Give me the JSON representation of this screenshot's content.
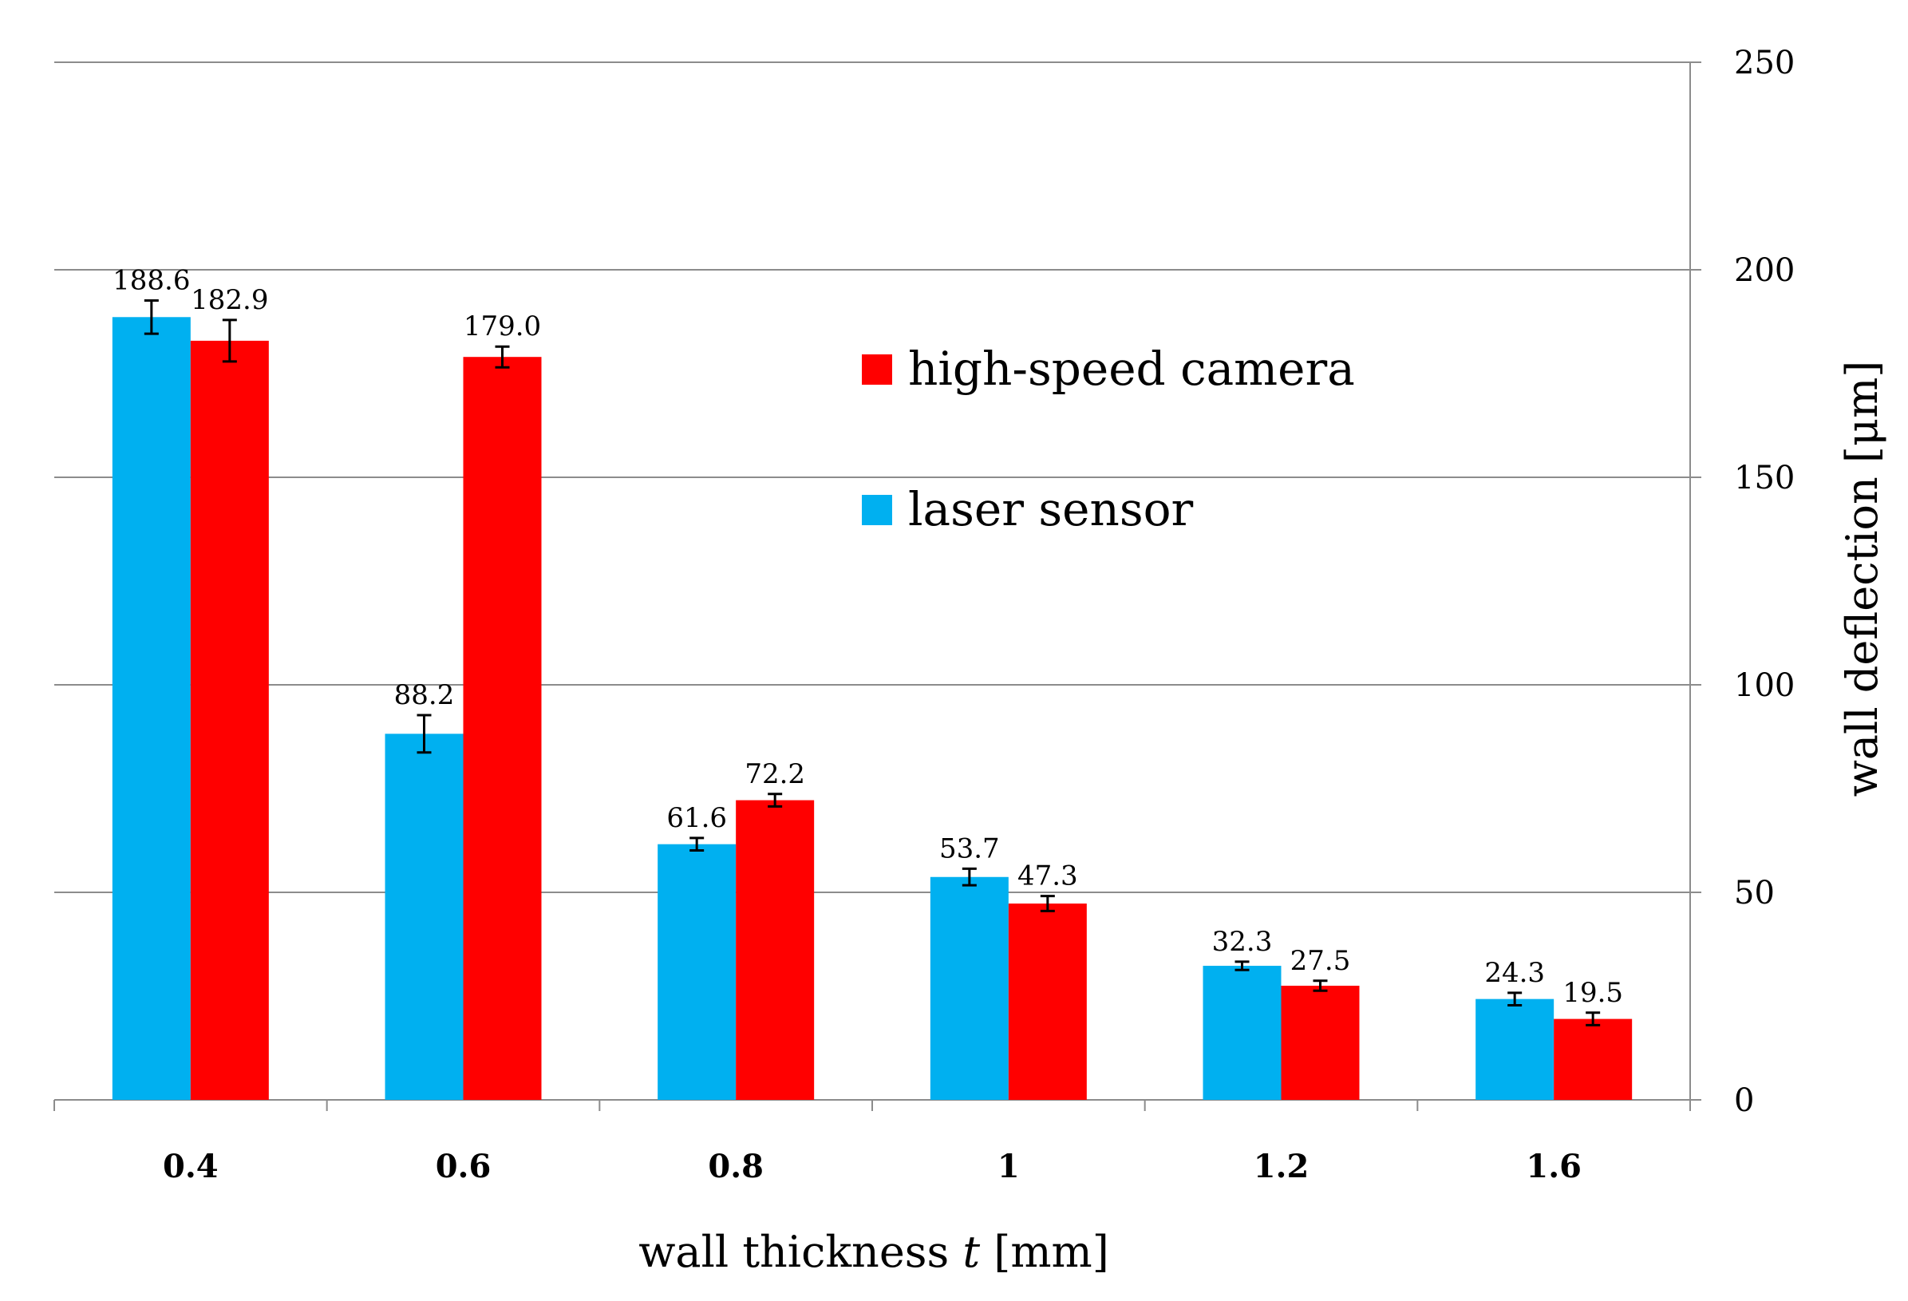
{
  "chart_data": {
    "type": "bar",
    "title": "",
    "xlabel": "wall thickness",
    "xlabel_var": "t",
    "xlabel_unit": "[mm]",
    "ylabel": "wall deflection  [μm]",
    "ylim": [
      0,
      250
    ],
    "yticks": [
      0,
      50,
      100,
      150,
      200,
      250
    ],
    "y_axis_side": "right",
    "grid": true,
    "legend_position": "top-center",
    "categories": [
      "0.4",
      "0.6",
      "0.8",
      "1",
      "1.2",
      "1.6"
    ],
    "series": [
      {
        "name": "laser sensor",
        "color": "#00b0f0",
        "values": [
          188.6,
          88.2,
          61.6,
          53.7,
          32.3,
          24.3
        ],
        "labels": [
          "188.6",
          "88.2",
          "61.6",
          "53.7",
          "32.3",
          "24.3"
        ],
        "errors": [
          4.0,
          4.5,
          1.5,
          2.0,
          1.0,
          1.5
        ]
      },
      {
        "name": "high-speed camera",
        "color": "#ff0000",
        "values": [
          182.9,
          179.0,
          72.2,
          47.3,
          27.5,
          19.5
        ],
        "labels": [
          "182.9",
          "179.0",
          "72.2",
          "47.3",
          "27.5",
          "19.5"
        ],
        "errors": [
          5.0,
          2.5,
          1.5,
          1.8,
          1.2,
          1.5
        ]
      }
    ],
    "legend_order": [
      "high-speed camera",
      "laser sensor"
    ]
  }
}
